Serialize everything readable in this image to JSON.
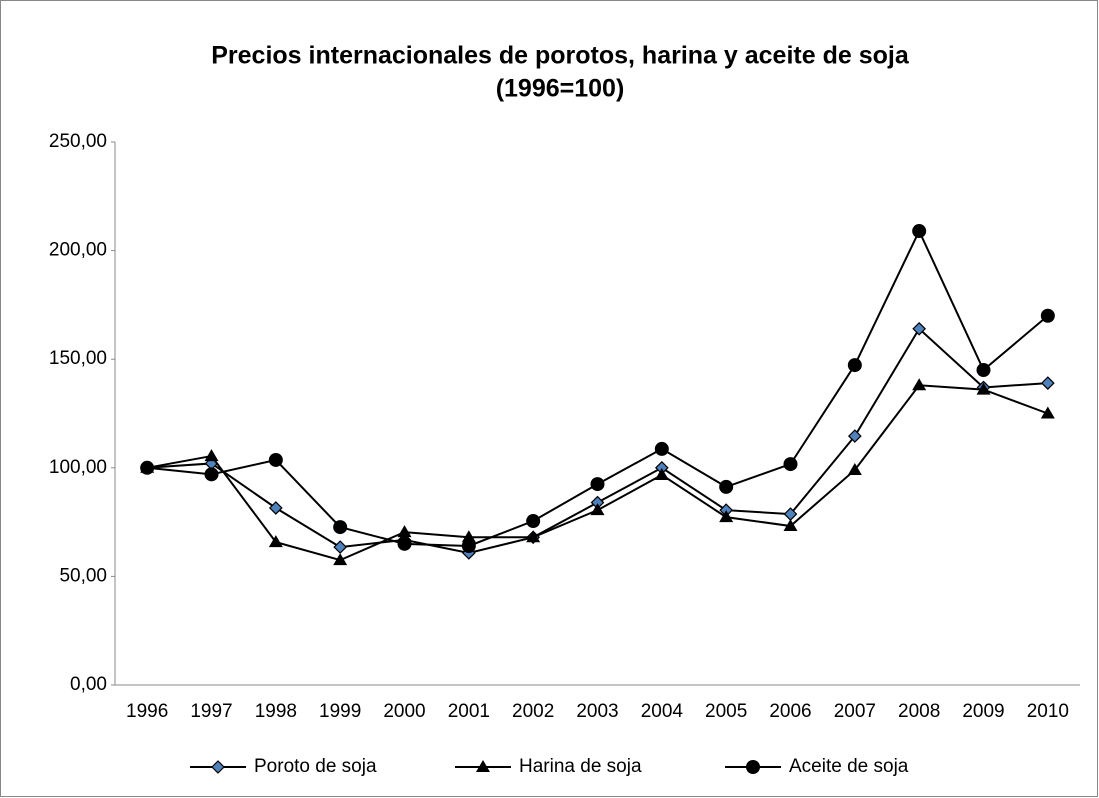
{
  "chart_data": {
    "type": "line",
    "title": "Precios internacionales de porotos, harina y aceite de soja",
    "subtitle": "(1996=100)",
    "categories": [
      "1996",
      "1997",
      "1998",
      "1999",
      "2000",
      "2001",
      "2002",
      "2003",
      "2004",
      "2005",
      "2006",
      "2007",
      "2008",
      "2009",
      "2010"
    ],
    "series": [
      {
        "name": "Poroto de soja",
        "color": "#000000",
        "marker": "diamond",
        "marker_color": "#4f81bd",
        "values": [
          100,
          102,
          81.5,
          63.5,
          66.8,
          60.8,
          68,
          84,
          100,
          80.5,
          78.7,
          114.6,
          164,
          137,
          139
        ]
      },
      {
        "name": "Harina de soja",
        "color": "#000000",
        "marker": "triangle",
        "marker_color": "#000000",
        "values": [
          100,
          105.4,
          65.8,
          57.5,
          70.4,
          68,
          68,
          80.5,
          96.7,
          77.3,
          73.2,
          99,
          138,
          136,
          125
        ]
      },
      {
        "name": "Aceite de soja",
        "color": "#000000",
        "marker": "circle",
        "marker_color": "#000000",
        "values": [
          100,
          97,
          103.6,
          72.7,
          65,
          64,
          75.5,
          92.5,
          108.7,
          91.2,
          101.7,
          147.3,
          209,
          145,
          170
        ]
      }
    ],
    "ylim": [
      0,
      250
    ],
    "yticks": [
      {
        "value": 0,
        "label": "0,00"
      },
      {
        "value": 50,
        "label": "50,00"
      },
      {
        "value": 100,
        "label": "100,00"
      },
      {
        "value": 150,
        "label": "150,00"
      },
      {
        "value": 200,
        "label": "200,00"
      },
      {
        "value": 250,
        "label": "250,00"
      }
    ],
    "grid": false,
    "legend": "bottom"
  }
}
